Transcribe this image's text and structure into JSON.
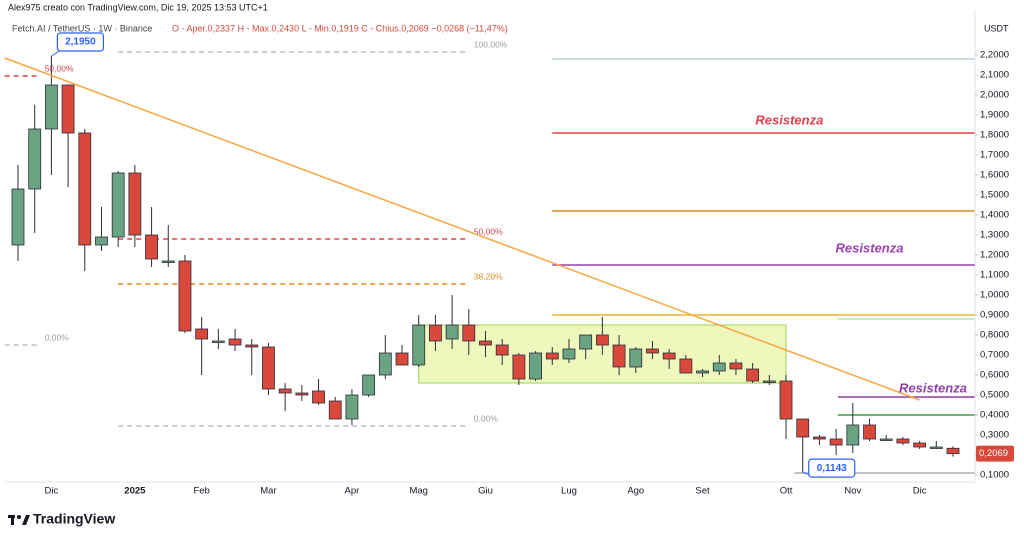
{
  "header": "Alex975 creato con TradingView.com, Dic 19, 2025 13:53 UTC+1",
  "footer": "TradingView",
  "chart_data": {
    "type": "candlestick",
    "legend_name": "Fetch.AI / TetherUS · 1W · Binance",
    "legend_values": "O - Aper.0,2337  H - Max.0,2430  L - Min.0,1919  C - Chius.0,2069  −0,0268 (−11,47%)",
    "y_label": "USDT",
    "categories": [
      null,
      null,
      "Dic",
      null,
      null,
      null,
      null,
      "2025",
      null,
      null,
      null,
      "Feb",
      null,
      null,
      null,
      "Mar",
      null,
      null,
      null,
      null,
      "Apr",
      null,
      null,
      null,
      "Mag",
      null,
      null,
      null,
      "Giu",
      null,
      null,
      null,
      null,
      "Lug",
      null,
      null,
      null,
      "Ago",
      null,
      null,
      null,
      "Set",
      null,
      null,
      null,
      null,
      "Ott",
      null,
      null,
      null,
      "Nov",
      null,
      null,
      null,
      "Dic",
      null,
      null
    ],
    "open": [
      1.25,
      1.53,
      1.83,
      2.05,
      1.81,
      1.25,
      1.29,
      1.61,
      1.3,
      1.17,
      1.17,
      0.83,
      0.77,
      0.78,
      0.75,
      0.74,
      0.53,
      0.51,
      0.52,
      0.47,
      0.38,
      0.5,
      0.6,
      0.71,
      0.65,
      0.85,
      0.78,
      0.85,
      0.77,
      0.75,
      0.7,
      0.58,
      0.71,
      0.68,
      0.73,
      0.8,
      0.75,
      0.64,
      0.73,
      0.71,
      0.68,
      0.61,
      0.62,
      0.66,
      0.63,
      0.57,
      0.57,
      0.38,
      0.29,
      0.28,
      0.25,
      0.35,
      0.28,
      0.28,
      0.26,
      0.24,
      0.2337
    ],
    "high": [
      1.65,
      1.95,
      2.195,
      2.05,
      1.83,
      1.44,
      1.62,
      1.65,
      1.44,
      1.35,
      1.2,
      0.89,
      0.83,
      0.83,
      0.78,
      0.76,
      0.56,
      0.55,
      0.58,
      0.49,
      0.53,
      0.6,
      0.8,
      0.75,
      0.9,
      0.9,
      1.0,
      0.93,
      0.82,
      0.78,
      0.71,
      0.72,
      0.74,
      0.78,
      0.8,
      0.89,
      0.8,
      0.74,
      0.77,
      0.73,
      0.7,
      0.63,
      0.7,
      0.68,
      0.66,
      0.6,
      0.6,
      0.38,
      0.3,
      0.33,
      0.46,
      0.38,
      0.3,
      0.29,
      0.27,
      0.27,
      0.243
    ],
    "low": [
      1.17,
      1.31,
      1.6,
      1.54,
      1.12,
      1.22,
      1.24,
      1.24,
      1.14,
      1.14,
      0.81,
      0.6,
      0.73,
      0.72,
      0.6,
      0.5,
      0.42,
      0.47,
      0.45,
      0.38,
      0.35,
      0.49,
      0.58,
      0.65,
      0.64,
      0.72,
      0.73,
      0.7,
      0.69,
      0.65,
      0.55,
      0.57,
      0.65,
      0.66,
      0.68,
      0.7,
      0.6,
      0.61,
      0.68,
      0.63,
      0.61,
      0.59,
      0.6,
      0.6,
      0.56,
      0.55,
      0.28,
      0.1143,
      0.25,
      0.2,
      0.21,
      0.27,
      0.27,
      0.25,
      0.23,
      0.23,
      0.1919
    ],
    "close": [
      1.53,
      1.83,
      2.05,
      1.81,
      1.25,
      1.29,
      1.61,
      1.3,
      1.18,
      1.17,
      0.82,
      0.78,
      0.77,
      0.75,
      0.74,
      0.53,
      0.51,
      0.5,
      0.46,
      0.38,
      0.5,
      0.6,
      0.71,
      0.65,
      0.85,
      0.77,
      0.85,
      0.77,
      0.75,
      0.7,
      0.58,
      0.71,
      0.68,
      0.73,
      0.8,
      0.75,
      0.64,
      0.73,
      0.71,
      0.68,
      0.61,
      0.62,
      0.66,
      0.63,
      0.57,
      0.57,
      0.38,
      0.29,
      0.28,
      0.25,
      0.35,
      0.28,
      0.28,
      0.26,
      0.24,
      0.24,
      0.2069
    ],
    "up_color": "#6aa382",
    "down_color": "#d9493b",
    "ylim": [
      0.065,
      2.425
    ],
    "yticks": [
      {
        "value": 0.1,
        "label": "0,1000"
      },
      {
        "value": 0.2,
        "label": "0,2000"
      },
      {
        "value": 0.3,
        "label": "0,3000"
      },
      {
        "value": 0.4,
        "label": "0,4000"
      },
      {
        "value": 0.5,
        "label": "0,5000"
      },
      {
        "value": 0.6,
        "label": "0,6000"
      },
      {
        "value": 0.7,
        "label": "0,7000"
      },
      {
        "value": 0.8,
        "label": "0,8000"
      },
      {
        "value": 0.9,
        "label": "0,9000"
      },
      {
        "value": 1.0,
        "label": "1,0000"
      },
      {
        "value": 1.1,
        "label": "1,1000"
      },
      {
        "value": 1.2,
        "label": "1,2000"
      },
      {
        "value": 1.3,
        "label": "1,3000"
      },
      {
        "value": 1.4,
        "label": "1,4000"
      },
      {
        "value": 1.5,
        "label": "1,5000"
      },
      {
        "value": 1.6,
        "label": "1,6000"
      },
      {
        "value": 1.7,
        "label": "1,7000"
      },
      {
        "value": 1.8,
        "label": "1,8000"
      },
      {
        "value": 1.9,
        "label": "1,9000"
      },
      {
        "value": 2.0,
        "label": "2,0000"
      },
      {
        "value": 2.1,
        "label": "2,1000"
      },
      {
        "value": 2.2,
        "label": "2,2000"
      }
    ],
    "grid": false,
    "levels": [
      {
        "value": 2.18,
        "color": "#b9cfd3",
        "from": 32,
        "to": 57.3
      },
      {
        "value": 1.81,
        "color": "#e0414b",
        "from": 32,
        "to": 57.3
      },
      {
        "value": 1.42,
        "color": "#e08a1e",
        "from": 32,
        "to": 57.3
      },
      {
        "value": 1.15,
        "color": "#9c3fb0",
        "from": 32,
        "to": 57.3
      },
      {
        "value": 0.9,
        "color": "#f0b429",
        "from": 32,
        "to": 57.3
      },
      {
        "value": 0.88,
        "color": "#b8dde6",
        "from": 49.1,
        "to": 57.3
      },
      {
        "value": 0.49,
        "color": "#8e3fa8",
        "from": 49.1,
        "to": 57.3
      },
      {
        "value": 0.4,
        "color": "#3e9a4a",
        "from": 49.1,
        "to": 57.3
      },
      {
        "value": 0.11,
        "color": "#a8adb3",
        "from": 46.5,
        "to": 57.3
      }
    ],
    "fib": [
      {
        "label": "100,00%",
        "value": 2.215,
        "color": "#9aa0a6",
        "from": 6,
        "to": 27
      },
      {
        "label": "50,00%",
        "value": 1.28,
        "color": "#e0414b",
        "from": 6,
        "to": 27
      },
      {
        "label": "38,20%",
        "value": 1.055,
        "color": "#e08a1e",
        "from": 6,
        "to": 27
      },
      {
        "label": "0,00%",
        "value": 0.345,
        "color": "#9aa0a6",
        "from": 6,
        "to": 27
      },
      {
        "label": "50,00%",
        "value": 2.095,
        "color": "#e0414b",
        "from": -0.8,
        "to": 1.3
      },
      {
        "label": "0,00%",
        "value": 0.75,
        "color": "#9aa0a6",
        "from": -0.8,
        "to": 1.3
      }
    ],
    "zone": {
      "from": 24,
      "to": 46,
      "top": 0.85,
      "bottom": 0.56,
      "color": "#e9f5a6"
    },
    "trendline": {
      "x": [
        -0.8,
        54
      ],
      "values": [
        2.185,
        0.475
      ],
      "color": "#f5a742"
    },
    "annotations": [
      {
        "text": "Resistenza",
        "color": "#e0414b",
        "value": 1.87,
        "x": 46.2
      },
      {
        "text": "Resistenza",
        "color": "#9c3fb0",
        "value": 1.23,
        "x": 51
      },
      {
        "text": "Resistenza",
        "color": "#8e3fa8",
        "value": 0.53,
        "x": 54.8
      }
    ],
    "callouts": [
      {
        "value": 2.195,
        "label": "2,1950",
        "index": 2,
        "side": "up"
      },
      {
        "value": 0.1143,
        "label": "0,1143",
        "index": 47,
        "side": "down"
      }
    ],
    "last_price": {
      "value": 0.2069,
      "label": "0,2069"
    }
  }
}
